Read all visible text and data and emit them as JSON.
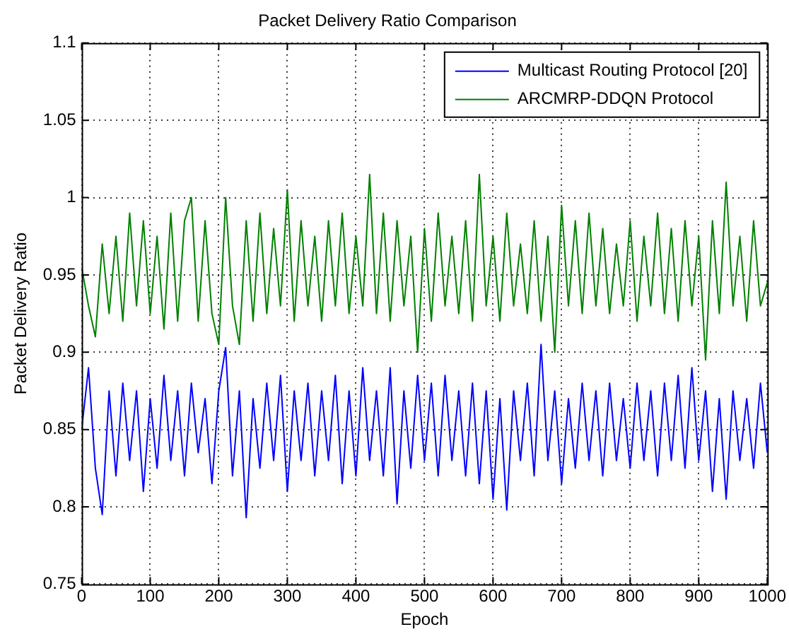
{
  "chart_data": {
    "type": "line",
    "title": "Packet Delivery Ratio Comparison",
    "xlabel": "Epoch",
    "ylabel": "Packet Delivery Ratio",
    "x": [
      0,
      10,
      20,
      30,
      40,
      50,
      60,
      70,
      80,
      90,
      100,
      110,
      120,
      130,
      140,
      150,
      160,
      170,
      180,
      190,
      200,
      210,
      220,
      230,
      240,
      250,
      260,
      270,
      280,
      290,
      300,
      310,
      320,
      330,
      340,
      350,
      360,
      370,
      380,
      390,
      400,
      410,
      420,
      430,
      440,
      450,
      460,
      470,
      480,
      490,
      500,
      510,
      520,
      530,
      540,
      550,
      560,
      570,
      580,
      590,
      600,
      610,
      620,
      630,
      640,
      650,
      660,
      670,
      680,
      690,
      700,
      710,
      720,
      730,
      740,
      750,
      760,
      770,
      780,
      790,
      800,
      810,
      820,
      830,
      840,
      850,
      860,
      870,
      880,
      890,
      900,
      910,
      920,
      930,
      940,
      950,
      960,
      970,
      980,
      990,
      1000
    ],
    "series": [
      {
        "name": "Multicast Routing Protocol [20]",
        "color": "#0000ff",
        "values": [
          0.85,
          0.89,
          0.825,
          0.795,
          0.875,
          0.82,
          0.88,
          0.83,
          0.875,
          0.81,
          0.87,
          0.825,
          0.885,
          0.83,
          0.875,
          0.82,
          0.88,
          0.835,
          0.87,
          0.815,
          0.875,
          0.903,
          0.82,
          0.875,
          0.793,
          0.87,
          0.825,
          0.88,
          0.83,
          0.885,
          0.81,
          0.875,
          0.83,
          0.88,
          0.82,
          0.875,
          0.83,
          0.885,
          0.815,
          0.875,
          0.82,
          0.89,
          0.83,
          0.875,
          0.82,
          0.89,
          0.802,
          0.875,
          0.825,
          0.885,
          0.83,
          0.88,
          0.82,
          0.885,
          0.83,
          0.875,
          0.82,
          0.88,
          0.815,
          0.875,
          0.805,
          0.87,
          0.798,
          0.875,
          0.83,
          0.88,
          0.82,
          0.905,
          0.83,
          0.875,
          0.815,
          0.87,
          0.825,
          0.88,
          0.83,
          0.875,
          0.82,
          0.88,
          0.83,
          0.87,
          0.825,
          0.88,
          0.83,
          0.875,
          0.82,
          0.88,
          0.83,
          0.885,
          0.825,
          0.89,
          0.83,
          0.875,
          0.81,
          0.87,
          0.805,
          0.875,
          0.83,
          0.87,
          0.825,
          0.88,
          0.835
        ]
      },
      {
        "name": "ARCMRP-DDQN Protocol",
        "color": "#008000",
        "values": [
          0.955,
          0.93,
          0.91,
          0.97,
          0.925,
          0.975,
          0.92,
          0.99,
          0.93,
          0.985,
          0.925,
          0.975,
          0.915,
          0.99,
          0.92,
          0.985,
          1.0,
          0.92,
          0.985,
          0.925,
          0.905,
          1.0,
          0.93,
          0.905,
          0.985,
          0.92,
          0.99,
          0.925,
          0.98,
          0.93,
          1.005,
          0.92,
          0.985,
          0.93,
          0.975,
          0.92,
          0.985,
          0.93,
          0.99,
          0.925,
          0.975,
          0.93,
          1.015,
          0.925,
          0.99,
          0.92,
          0.985,
          0.93,
          0.975,
          0.9,
          0.98,
          0.92,
          0.99,
          0.93,
          0.975,
          0.925,
          0.985,
          0.92,
          1.015,
          0.93,
          0.975,
          0.92,
          0.99,
          0.93,
          0.97,
          0.925,
          0.985,
          0.92,
          0.975,
          0.9,
          0.995,
          0.93,
          0.985,
          0.925,
          0.99,
          0.93,
          0.98,
          0.925,
          0.97,
          0.93,
          0.985,
          0.92,
          0.975,
          0.93,
          0.99,
          0.925,
          0.98,
          0.92,
          0.985,
          0.93,
          0.975,
          0.895,
          0.985,
          0.925,
          1.01,
          0.93,
          0.975,
          0.92,
          0.985,
          0.93,
          0.945
        ]
      }
    ],
    "xlim": [
      0,
      1000
    ],
    "xticks": [
      0,
      100,
      200,
      300,
      400,
      500,
      600,
      700,
      800,
      900,
      1000
    ],
    "ylim": [
      0.75,
      1.1
    ],
    "yticks": [
      0.75,
      0.8,
      0.85,
      0.9,
      0.95,
      1,
      1.05,
      1.1
    ],
    "grid": true,
    "legend": "top right",
    "marker": "none",
    "line_style": "solid"
  }
}
